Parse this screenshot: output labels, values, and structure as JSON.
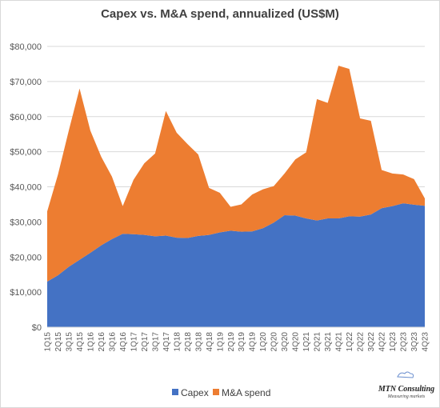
{
  "chart_data": {
    "type": "area",
    "stacked": true,
    "title": "Capex vs. M&A spend, annualized (US$M)",
    "xlabel": "",
    "ylabel": "",
    "ylim": [
      0,
      80000
    ],
    "yticks": [
      "$0",
      "$10,000",
      "$20,000",
      "$30,000",
      "$40,000",
      "$50,000",
      "$60,000",
      "$70,000",
      "$80,000"
    ],
    "grid": true,
    "legend_position": "bottom",
    "categories": [
      "1Q15",
      "2Q15",
      "3Q15",
      "4Q15",
      "1Q16",
      "2Q16",
      "3Q16",
      "4Q16",
      "1Q17",
      "2Q17",
      "3Q17",
      "4Q17",
      "1Q18",
      "2Q18",
      "3Q18",
      "4Q18",
      "1Q19",
      "2Q19",
      "3Q19",
      "4Q19",
      "1Q20",
      "2Q20",
      "3Q20",
      "4Q20",
      "1Q21",
      "2Q21",
      "3Q21",
      "4Q21",
      "1Q22",
      "2Q22",
      "3Q22",
      "4Q22",
      "1Q23",
      "2Q23",
      "3Q23",
      "4Q23"
    ],
    "series": [
      {
        "name": "Capex",
        "color": "#4472c4",
        "values": [
          13000,
          14800,
          17200,
          19200,
          21200,
          23300,
          25100,
          26600,
          26500,
          26300,
          25900,
          26100,
          25500,
          25400,
          26000,
          26300,
          27000,
          27500,
          27200,
          27300,
          28200,
          29800,
          31900,
          31800,
          31000,
          30400,
          31000,
          31000,
          31600,
          31500,
          32100,
          33900,
          34500,
          35300,
          34900,
          34600
        ]
      },
      {
        "name": "M&A spend",
        "color": "#ed7d31",
        "values": [
          20000,
          28700,
          38800,
          48800,
          34800,
          25300,
          17800,
          7900,
          15500,
          20400,
          23600,
          35500,
          29900,
          26800,
          23200,
          13400,
          11300,
          6800,
          7800,
          10500,
          11100,
          10400,
          11900,
          16000,
          18800,
          34600,
          32900,
          43500,
          42000,
          28000,
          26700,
          10900,
          9300,
          8200,
          7300,
          2100
        ]
      }
    ]
  },
  "legend": {
    "capex_label": "Capex",
    "ma_label": "M&A spend"
  },
  "logo": {
    "name": "MTN Consulting",
    "tagline": "Measuring markets"
  }
}
